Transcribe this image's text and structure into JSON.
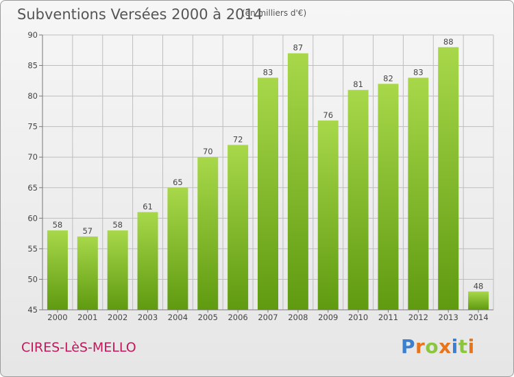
{
  "title": "Subventions Versées 2000 à 2014",
  "unit_note": "(en milliers d'€)",
  "commune": "CIRES-LèS-MELLO",
  "logo": {
    "text": "Proxiti",
    "letter_colors": [
      "#3a7fd0",
      "#e8741c",
      "#8cc63f",
      "#e8741c",
      "#3a7fd0",
      "#8cc63f",
      "#e8741c"
    ]
  },
  "colors": {
    "bar_top": "#a8d84a",
    "bar_bottom": "#5f9a10",
    "grid": "#bdbdbd",
    "axis": "#777777"
  },
  "chart_data": {
    "type": "bar",
    "categories": [
      "2000",
      "2001",
      "2002",
      "2003",
      "2004",
      "2005",
      "2006",
      "2007",
      "2008",
      "2009",
      "2010",
      "2011",
      "2012",
      "2013",
      "2014"
    ],
    "values": [
      58,
      57,
      58,
      61,
      65,
      70,
      72,
      83,
      87,
      76,
      81,
      82,
      83,
      88,
      48
    ],
    "title": "Subventions Versées 2000 à 2014",
    "ylim": [
      45,
      90
    ],
    "yticks": [
      45,
      50,
      55,
      60,
      65,
      70,
      75,
      80,
      85,
      90
    ],
    "grid": true,
    "legend": "none"
  }
}
